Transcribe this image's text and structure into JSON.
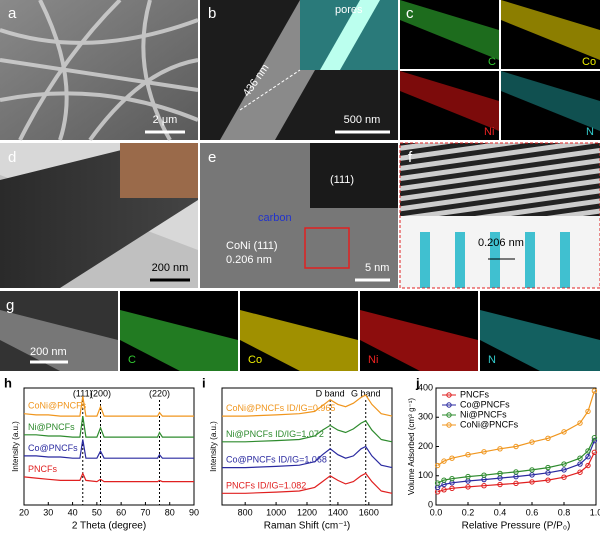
{
  "images": {
    "a": {
      "label": "a",
      "scale": "2 μm"
    },
    "b": {
      "label": "b",
      "scale": "500 nm",
      "width": "436 nm",
      "inset": "pores"
    },
    "c": {
      "label": "c",
      "maps": [
        "C",
        "Co",
        "Ni",
        "N"
      ]
    },
    "d": {
      "label": "d",
      "scale": "200 nm"
    },
    "e": {
      "label": "e",
      "spot": "(111)",
      "carbon": "carbon",
      "plane": "CoNi (111)",
      "spacing": "0.206 nm",
      "scale": "5 nm"
    },
    "f": {
      "label": "f",
      "spacing": "0.206 nm"
    },
    "g": {
      "label": "g",
      "scale": "200 nm",
      "maps": [
        "C",
        "Co",
        "Ni",
        "N"
      ]
    }
  },
  "chart_data": [
    {
      "type": "line",
      "panel_label": "h",
      "xlabel": "2 Theta (degree)",
      "ylabel": "Intensity (a.u.)",
      "xlim": [
        20,
        90
      ],
      "xticks": [
        20,
        30,
        40,
        50,
        60,
        70,
        80,
        90
      ],
      "ylim": [
        0,
        100
      ],
      "x": [
        20,
        25,
        30,
        35,
        40,
        43,
        44.2,
        45.5,
        50,
        51.5,
        53,
        60,
        70,
        75,
        75.8,
        77,
        85,
        90
      ],
      "annotations": [
        {
          "text": "(111)",
          "x": 44.2
        },
        {
          "text": "(200)",
          "x": 51.5
        },
        {
          "text": "(220)",
          "x": 75.8
        }
      ],
      "series": [
        {
          "name": "CoNi@PNCFs",
          "color": "#f0961e",
          "values": [
            78,
            77,
            77,
            76,
            76,
            76,
            93,
            76,
            76,
            84,
            76,
            76,
            76,
            76,
            79,
            76,
            76,
            76
          ]
        },
        {
          "name": "Ni@PNCFs",
          "color": "#2e8b2e",
          "values": [
            60,
            60,
            59,
            59,
            58,
            58,
            76,
            58,
            58,
            66,
            58,
            58,
            58,
            58,
            62,
            58,
            58,
            58
          ]
        },
        {
          "name": "Co@PNCFs",
          "color": "#2a2aa0",
          "values": [
            42,
            42,
            41,
            41,
            40,
            40,
            56,
            40,
            40,
            46,
            40,
            40,
            40,
            40,
            43,
            40,
            40,
            40
          ]
        },
        {
          "name": "PNCFs",
          "color": "#e02020",
          "values": [
            24,
            23,
            22,
            21,
            21,
            21,
            27,
            21,
            20,
            22,
            20,
            20,
            20,
            20,
            21,
            20,
            20,
            20
          ]
        }
      ]
    },
    {
      "type": "line",
      "panel_label": "i",
      "xlabel": "Raman Shift (cm⁻¹)",
      "ylabel": "Intensity (a.u.)",
      "xlim": [
        650,
        1750
      ],
      "xticks": [
        800,
        1000,
        1200,
        1400,
        1600
      ],
      "ylim": [
        0,
        100
      ],
      "x": [
        650,
        800,
        1000,
        1150,
        1250,
        1300,
        1350,
        1400,
        1450,
        1500,
        1550,
        1580,
        1620,
        1680,
        1750
      ],
      "annotations": [
        {
          "text": "D band",
          "x": 1350
        },
        {
          "text": "G band",
          "x": 1580
        }
      ],
      "series": [
        {
          "name": "CoNi@PNCFs",
          "ratio": "ID/IG=0.965",
          "color": "#f0961e",
          "values": [
            76,
            76,
            77,
            78,
            80,
            85,
            90,
            86,
            84,
            87,
            92,
            94,
            86,
            78,
            76
          ]
        },
        {
          "name": "Ni@PNCFs",
          "ratio": "ID/IG=1.072",
          "color": "#2e8b2e",
          "values": [
            54,
            54,
            55,
            56,
            59,
            64,
            68,
            64,
            62,
            65,
            70,
            72,
            64,
            56,
            54
          ]
        },
        {
          "name": "Co@PNCFs",
          "ratio": "ID/IG=1.068",
          "color": "#2a2aa0",
          "values": [
            32,
            32,
            33,
            34,
            37,
            43,
            48,
            43,
            40,
            42,
            48,
            50,
            42,
            34,
            32
          ]
        },
        {
          "name": "PNCFs",
          "ratio": "ID/IG=1.082",
          "color": "#e02020",
          "values": [
            10,
            10,
            11,
            12,
            15,
            20,
            25,
            21,
            18,
            20,
            25,
            27,
            20,
            12,
            10
          ]
        }
      ]
    },
    {
      "type": "line",
      "panel_label": "j",
      "xlabel": "Relative Pressure (P/P₀)",
      "ylabel": "Volume Adsorbed (cm³ g⁻¹)",
      "xlim": [
        0,
        1
      ],
      "xticks": [
        {
          "value": 0,
          "label": "0.0"
        },
        {
          "value": 0.2,
          "label": "0.2"
        },
        {
          "value": 0.4,
          "label": "0.4"
        },
        {
          "value": 0.6,
          "label": "0.6"
        },
        {
          "value": 0.8,
          "label": "0.8"
        },
        {
          "value": 1,
          "label": "1.0"
        }
      ],
      "ylim": [
        0,
        400
      ],
      "yticks": [
        0,
        100,
        200,
        300,
        400
      ],
      "legend": "upper left",
      "markers": true,
      "x": [
        0.01,
        0.05,
        0.1,
        0.2,
        0.3,
        0.4,
        0.5,
        0.6,
        0.7,
        0.8,
        0.9,
        0.95,
        0.99
      ],
      "series": [
        {
          "name": "PNCFs",
          "color": "#e02020",
          "values": [
            45,
            52,
            57,
            62,
            66,
            70,
            74,
            79,
            85,
            95,
            112,
            135,
            180
          ]
        },
        {
          "name": "Co@PNCFs",
          "color": "#2a2aa0",
          "values": [
            60,
            70,
            76,
            82,
            87,
            92,
            97,
            103,
            110,
            120,
            140,
            165,
            220
          ]
        },
        {
          "name": "Ni@PNCFs",
          "color": "#2e8b2e",
          "values": [
            75,
            85,
            90,
            97,
            102,
            108,
            113,
            120,
            128,
            140,
            160,
            185,
            230
          ]
        },
        {
          "name": "CoNi@PNCFs",
          "color": "#f0961e",
          "values": [
            135,
            150,
            160,
            172,
            182,
            192,
            200,
            215,
            228,
            250,
            280,
            320,
            390
          ]
        }
      ]
    }
  ]
}
